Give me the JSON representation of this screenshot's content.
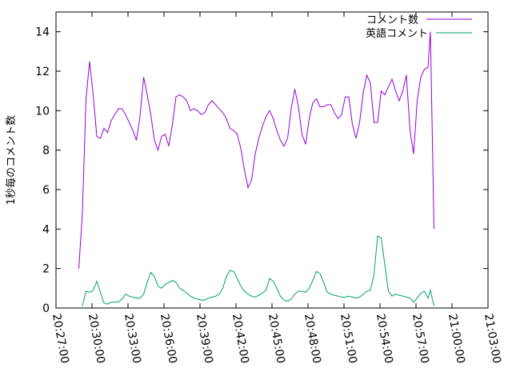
{
  "chart_data": {
    "type": "line",
    "ylabel": "1秒毎のコメント数",
    "xlabel": "",
    "title": "",
    "ylim": [
      0,
      15
    ],
    "yticks": [
      0,
      2,
      4,
      6,
      8,
      10,
      12,
      14
    ],
    "xlim": [
      "20:27:00",
      "21:03:00"
    ],
    "xticks": [
      "20:27:00",
      "20:30:00",
      "20:33:00",
      "20:36:00",
      "20:39:00",
      "20:42:00",
      "20:45:00",
      "20:48:00",
      "20:51:00",
      "20:54:00",
      "20:57:00",
      "21:00:00",
      "21:03:00"
    ],
    "grid": false,
    "legend": "top-right",
    "series": [
      {
        "name": "コメント数",
        "color": "#9400d3",
        "points": [
          [
            "20:28:54",
            2.0
          ],
          [
            "20:29:12",
            4.8
          ],
          [
            "20:29:30",
            10.6
          ],
          [
            "20:29:48",
            12.5
          ],
          [
            "20:30:06",
            10.8
          ],
          [
            "20:30:24",
            8.7
          ],
          [
            "20:30:42",
            8.6
          ],
          [
            "20:31:00",
            9.1
          ],
          [
            "20:31:18",
            8.9
          ],
          [
            "20:31:36",
            9.5
          ],
          [
            "20:31:54",
            9.8
          ],
          [
            "20:32:12",
            10.1
          ],
          [
            "20:32:30",
            10.1
          ],
          [
            "20:32:48",
            9.8
          ],
          [
            "20:33:06",
            9.4
          ],
          [
            "20:33:24",
            9.0
          ],
          [
            "20:33:42",
            8.5
          ],
          [
            "20:34:00",
            9.7
          ],
          [
            "20:34:18",
            11.7
          ],
          [
            "20:34:36",
            10.8
          ],
          [
            "20:34:54",
            9.8
          ],
          [
            "20:35:12",
            8.5
          ],
          [
            "20:35:30",
            8.0
          ],
          [
            "20:35:48",
            8.7
          ],
          [
            "20:36:06",
            8.8
          ],
          [
            "20:36:24",
            8.2
          ],
          [
            "20:36:42",
            9.3
          ],
          [
            "20:37:00",
            10.7
          ],
          [
            "20:37:18",
            10.8
          ],
          [
            "20:37:36",
            10.7
          ],
          [
            "20:37:54",
            10.5
          ],
          [
            "20:38:12",
            10.0
          ],
          [
            "20:38:30",
            10.1
          ],
          [
            "20:38:48",
            10.0
          ],
          [
            "20:39:06",
            9.8
          ],
          [
            "20:39:24",
            9.9
          ],
          [
            "20:39:42",
            10.3
          ],
          [
            "20:40:00",
            10.5
          ],
          [
            "20:40:18",
            10.3
          ],
          [
            "20:40:36",
            10.1
          ],
          [
            "20:40:54",
            9.9
          ],
          [
            "20:41:12",
            9.6
          ],
          [
            "20:41:30",
            9.1
          ],
          [
            "20:41:48",
            9.0
          ],
          [
            "20:42:06",
            8.8
          ],
          [
            "20:42:24",
            8.1
          ],
          [
            "20:42:42",
            7.0
          ],
          [
            "20:43:00",
            6.1
          ],
          [
            "20:43:18",
            6.5
          ],
          [
            "20:43:36",
            7.8
          ],
          [
            "20:43:54",
            8.6
          ],
          [
            "20:44:12",
            9.2
          ],
          [
            "20:44:30",
            9.7
          ],
          [
            "20:44:48",
            10.0
          ],
          [
            "20:45:06",
            9.6
          ],
          [
            "20:45:24",
            9.0
          ],
          [
            "20:45:42",
            8.5
          ],
          [
            "20:46:00",
            8.2
          ],
          [
            "20:46:18",
            8.6
          ],
          [
            "20:46:36",
            10.1
          ],
          [
            "20:46:54",
            11.1
          ],
          [
            "20:47:12",
            10.2
          ],
          [
            "20:47:30",
            8.8
          ],
          [
            "20:47:48",
            8.3
          ],
          [
            "20:48:06",
            9.6
          ],
          [
            "20:48:24",
            10.4
          ],
          [
            "20:48:42",
            10.6
          ],
          [
            "20:49:00",
            10.2
          ],
          [
            "20:49:18",
            10.2
          ],
          [
            "20:49:36",
            10.3
          ],
          [
            "20:49:54",
            10.3
          ],
          [
            "20:50:12",
            9.9
          ],
          [
            "20:50:30",
            9.6
          ],
          [
            "20:50:48",
            9.8
          ],
          [
            "20:51:06",
            10.7
          ],
          [
            "20:51:24",
            10.7
          ],
          [
            "20:51:42",
            9.3
          ],
          [
            "20:52:00",
            8.6
          ],
          [
            "20:52:18",
            9.4
          ],
          [
            "20:52:36",
            10.9
          ],
          [
            "20:52:54",
            11.8
          ],
          [
            "20:53:12",
            11.4
          ],
          [
            "20:53:30",
            9.4
          ],
          [
            "20:53:48",
            9.4
          ],
          [
            "20:54:06",
            11.0
          ],
          [
            "20:54:24",
            10.8
          ],
          [
            "20:54:42",
            11.2
          ],
          [
            "20:55:00",
            11.6
          ],
          [
            "20:55:18",
            11.0
          ],
          [
            "20:55:36",
            10.5
          ],
          [
            "20:55:54",
            11.0
          ],
          [
            "20:56:12",
            11.8
          ],
          [
            "20:56:30",
            9.0
          ],
          [
            "20:56:48",
            7.8
          ],
          [
            "20:57:06",
            10.5
          ],
          [
            "20:57:24",
            11.7
          ],
          [
            "20:57:42",
            12.1
          ],
          [
            "20:58:00",
            12.2
          ],
          [
            "20:58:12",
            14.0
          ],
          [
            "20:58:30",
            4.0
          ]
        ]
      },
      {
        "name": "英語コメント",
        "color": "#009e73",
        "points": [
          [
            "20:29:12",
            0.1
          ],
          [
            "20:29:30",
            0.85
          ],
          [
            "20:29:48",
            0.8
          ],
          [
            "20:30:06",
            0.9
          ],
          [
            "20:30:24",
            1.35
          ],
          [
            "20:30:42",
            0.8
          ],
          [
            "20:31:00",
            0.25
          ],
          [
            "20:31:18",
            0.2
          ],
          [
            "20:31:36",
            0.3
          ],
          [
            "20:31:54",
            0.3
          ],
          [
            "20:32:12",
            0.3
          ],
          [
            "20:32:30",
            0.45
          ],
          [
            "20:32:48",
            0.7
          ],
          [
            "20:33:06",
            0.6
          ],
          [
            "20:33:24",
            0.55
          ],
          [
            "20:33:42",
            0.5
          ],
          [
            "20:34:00",
            0.5
          ],
          [
            "20:34:18",
            0.7
          ],
          [
            "20:34:36",
            1.3
          ],
          [
            "20:34:54",
            1.8
          ],
          [
            "20:35:12",
            1.6
          ],
          [
            "20:35:30",
            1.1
          ],
          [
            "20:35:48",
            1.0
          ],
          [
            "20:36:06",
            1.2
          ],
          [
            "20:36:24",
            1.3
          ],
          [
            "20:36:42",
            1.4
          ],
          [
            "20:37:00",
            1.3
          ],
          [
            "20:37:18",
            1.0
          ],
          [
            "20:37:36",
            0.9
          ],
          [
            "20:37:54",
            0.75
          ],
          [
            "20:38:12",
            0.6
          ],
          [
            "20:38:30",
            0.5
          ],
          [
            "20:38:48",
            0.45
          ],
          [
            "20:39:06",
            0.4
          ],
          [
            "20:39:24",
            0.4
          ],
          [
            "20:39:42",
            0.5
          ],
          [
            "20:40:00",
            0.55
          ],
          [
            "20:40:18",
            0.6
          ],
          [
            "20:40:36",
            0.7
          ],
          [
            "20:40:54",
            1.0
          ],
          [
            "20:41:12",
            1.6
          ],
          [
            "20:41:30",
            1.9
          ],
          [
            "20:41:48",
            1.85
          ],
          [
            "20:42:06",
            1.5
          ],
          [
            "20:42:24",
            1.1
          ],
          [
            "20:42:42",
            0.85
          ],
          [
            "20:43:00",
            0.7
          ],
          [
            "20:43:18",
            0.6
          ],
          [
            "20:43:36",
            0.55
          ],
          [
            "20:43:54",
            0.65
          ],
          [
            "20:44:12",
            0.75
          ],
          [
            "20:44:30",
            0.9
          ],
          [
            "20:44:48",
            1.5
          ],
          [
            "20:45:06",
            1.35
          ],
          [
            "20:45:24",
            1.0
          ],
          [
            "20:45:42",
            0.6
          ],
          [
            "20:46:00",
            0.4
          ],
          [
            "20:46:18",
            0.35
          ],
          [
            "20:46:36",
            0.45
          ],
          [
            "20:46:54",
            0.7
          ],
          [
            "20:47:12",
            0.85
          ],
          [
            "20:47:30",
            0.85
          ],
          [
            "20:47:48",
            0.8
          ],
          [
            "20:48:06",
            1.0
          ],
          [
            "20:48:24",
            1.4
          ],
          [
            "20:48:42",
            1.85
          ],
          [
            "20:49:00",
            1.75
          ],
          [
            "20:49:18",
            1.3
          ],
          [
            "20:49:36",
            0.8
          ],
          [
            "20:49:54",
            0.7
          ],
          [
            "20:50:12",
            0.65
          ],
          [
            "20:50:30",
            0.6
          ],
          [
            "20:50:48",
            0.55
          ],
          [
            "20:51:06",
            0.55
          ],
          [
            "20:51:24",
            0.6
          ],
          [
            "20:51:42",
            0.55
          ],
          [
            "20:52:00",
            0.5
          ],
          [
            "20:52:18",
            0.55
          ],
          [
            "20:52:36",
            0.7
          ],
          [
            "20:52:54",
            0.85
          ],
          [
            "20:53:12",
            0.9
          ],
          [
            "20:53:30",
            1.7
          ],
          [
            "20:53:48",
            3.65
          ],
          [
            "20:54:06",
            3.55
          ],
          [
            "20:54:24",
            2.2
          ],
          [
            "20:54:42",
            0.85
          ],
          [
            "20:55:00",
            0.6
          ],
          [
            "20:55:18",
            0.7
          ],
          [
            "20:55:36",
            0.65
          ],
          [
            "20:55:54",
            0.6
          ],
          [
            "20:56:12",
            0.55
          ],
          [
            "20:56:30",
            0.5
          ],
          [
            "20:56:48",
            0.3
          ],
          [
            "20:57:06",
            0.5
          ],
          [
            "20:57:24",
            0.75
          ],
          [
            "20:57:42",
            0.85
          ],
          [
            "20:58:00",
            0.5
          ],
          [
            "20:58:12",
            0.9
          ],
          [
            "20:58:30",
            0.1
          ]
        ]
      }
    ]
  }
}
